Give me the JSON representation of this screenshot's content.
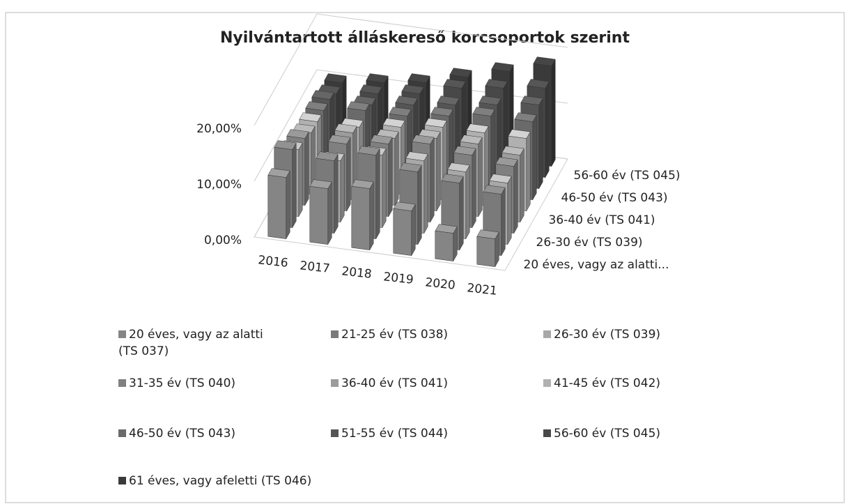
{
  "chart_data": {
    "type": "bar3d",
    "title": "Nyilvántartott álláskereső korcsoportok szerint",
    "categories": [
      "2016",
      "2017",
      "2018",
      "2019",
      "2020",
      "2021"
    ],
    "depth_labels": [
      "20 éves, vagy az alatti...",
      null,
      "26-30 év (TS 039)",
      null,
      "36-40 év (TS 041)",
      null,
      "46-50 év (TS 043)",
      null,
      "56-60 év (TS 045)",
      null
    ],
    "ylim": [
      0,
      25
    ],
    "yticks": [
      {
        "value": 0,
        "label": "0,00%"
      },
      {
        "value": 10,
        "label": "10,00%"
      },
      {
        "value": 20,
        "label": "20,00%"
      }
    ],
    "grid": true,
    "series": [
      {
        "name": "20 éves, vagy az alatti (TS 037)",
        "color": "#858585",
        "values": [
          11,
          10,
          11,
          8,
          5,
          5
        ]
      },
      {
        "name": "21-25 év (TS 038)",
        "color": "#7a7a7a",
        "values": [
          14,
          13,
          15,
          13,
          12,
          11
        ]
      },
      {
        "name": "26-30 év (TS 039)",
        "color": "#a8a8a8",
        "values": [
          12,
          11,
          13,
          13,
          12,
          11
        ]
      },
      {
        "name": "31-35 év (TS 040)",
        "color": "#808080",
        "values": [
          12,
          12,
          13,
          14,
          13,
          12
        ]
      },
      {
        "name": "36-40 év (TS 041)",
        "color": "#9c9c9c",
        "values": [
          11,
          12,
          12,
          13,
          13,
          12
        ]
      },
      {
        "name": "41-45 év (TS 042)",
        "color": "#b0b0b0",
        "values": [
          11,
          11,
          12,
          13,
          13,
          13
        ]
      },
      {
        "name": "46-50 év (TS 043)",
        "color": "#6a6a6a",
        "values": [
          11,
          12,
          12,
          13,
          14,
          14
        ]
      },
      {
        "name": "51-55 év (TS 044)",
        "color": "#555555",
        "values": [
          11,
          11,
          12,
          13,
          14,
          15
        ]
      },
      {
        "name": "56-60 év (TS 045)",
        "color": "#484848",
        "values": [
          10,
          11,
          12,
          14,
          15,
          16
        ]
      },
      {
        "name": "61 éves, vagy afeletti (TS 046)",
        "color": "#3a3a3a",
        "values": [
          10,
          11,
          12,
          14,
          16,
          18
        ]
      }
    ]
  }
}
